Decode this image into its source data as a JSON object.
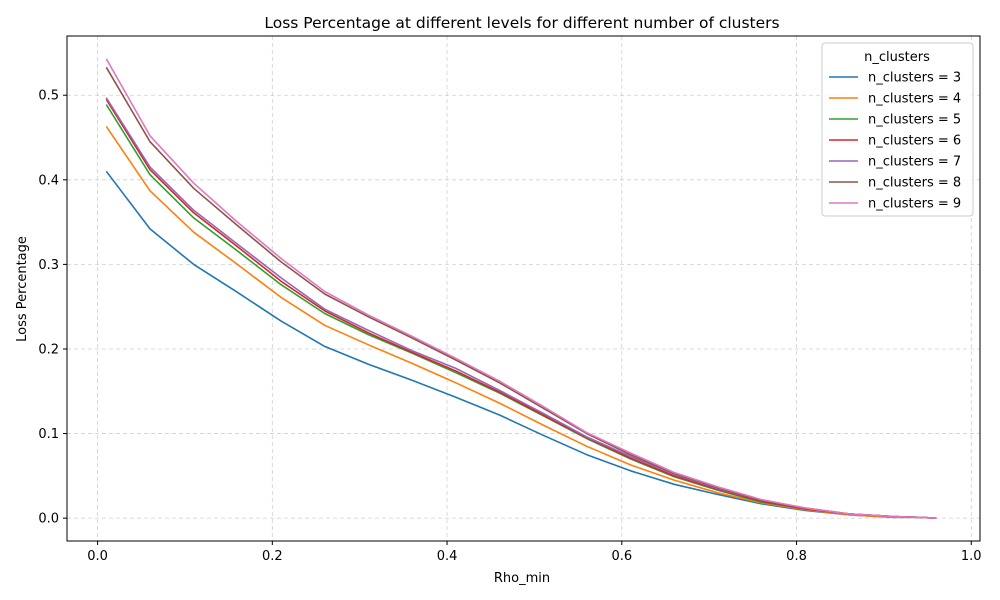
{
  "chart_data": {
    "type": "line",
    "title": "Loss Percentage at different levels for different number of clusters",
    "xlabel": "Rho_min",
    "ylabel": "Loss Percentage",
    "xlim": [
      -0.035,
      1.01
    ],
    "ylim": [
      -0.027,
      0.57
    ],
    "xticks": [
      0.0,
      0.2,
      0.4,
      0.6,
      0.8,
      1.0
    ],
    "xtick_labels": [
      "0.0",
      "0.2",
      "0.4",
      "0.6",
      "0.8",
      "1.0"
    ],
    "yticks": [
      0.0,
      0.1,
      0.2,
      0.3,
      0.4,
      0.5
    ],
    "ytick_labels": [
      "0.0",
      "0.1",
      "0.2",
      "0.3",
      "0.4",
      "0.5"
    ],
    "grid": true,
    "legend_title": "n_clusters",
    "legend_position": "top-right",
    "x": [
      0.01,
      0.06,
      0.11,
      0.16,
      0.21,
      0.26,
      0.31,
      0.36,
      0.41,
      0.46,
      0.51,
      0.56,
      0.61,
      0.66,
      0.71,
      0.76,
      0.81,
      0.86,
      0.91,
      0.94,
      0.96
    ],
    "series": [
      {
        "name": "n_clusters = 3",
        "color": "#1f77b4",
        "values": [
          0.41,
          0.342,
          0.3,
          0.267,
          0.233,
          0.203,
          0.182,
          0.163,
          0.143,
          0.122,
          0.098,
          0.075,
          0.056,
          0.04,
          0.028,
          0.017,
          0.009,
          0.004,
          0.001,
          0.001,
          0.0
        ]
      },
      {
        "name": "n_clusters = 4",
        "color": "#ff7f0e",
        "values": [
          0.463,
          0.387,
          0.338,
          0.3,
          0.261,
          0.228,
          0.205,
          0.183,
          0.16,
          0.136,
          0.11,
          0.085,
          0.063,
          0.045,
          0.03,
          0.018,
          0.01,
          0.004,
          0.001,
          0.001,
          0.0
        ]
      },
      {
        "name": "n_clusters = 5",
        "color": "#2ca02c",
        "values": [
          0.489,
          0.406,
          0.355,
          0.316,
          0.276,
          0.242,
          0.217,
          0.195,
          0.172,
          0.148,
          0.121,
          0.094,
          0.07,
          0.049,
          0.033,
          0.019,
          0.011,
          0.005,
          0.002,
          0.001,
          0.0
        ]
      },
      {
        "name": "n_clusters = 6",
        "color": "#d62728",
        "values": [
          0.495,
          0.412,
          0.361,
          0.321,
          0.28,
          0.245,
          0.219,
          0.196,
          0.174,
          0.149,
          0.122,
          0.095,
          0.071,
          0.05,
          0.034,
          0.02,
          0.011,
          0.005,
          0.002,
          0.001,
          0.0
        ]
      },
      {
        "name": "n_clusters = 7",
        "color": "#9467bd",
        "values": [
          0.497,
          0.415,
          0.364,
          0.324,
          0.284,
          0.247,
          0.222,
          0.198,
          0.177,
          0.151,
          0.124,
          0.096,
          0.073,
          0.052,
          0.035,
          0.021,
          0.012,
          0.005,
          0.002,
          0.001,
          0.0
        ]
      },
      {
        "name": "n_clusters = 8",
        "color": "#8c564b",
        "values": [
          0.533,
          0.445,
          0.39,
          0.346,
          0.303,
          0.265,
          0.238,
          0.213,
          0.187,
          0.16,
          0.13,
          0.1,
          0.075,
          0.053,
          0.036,
          0.021,
          0.012,
          0.005,
          0.002,
          0.001,
          0.0
        ]
      },
      {
        "name": "n_clusters = 9",
        "color": "#e377c2",
        "values": [
          0.543,
          0.452,
          0.396,
          0.35,
          0.307,
          0.268,
          0.24,
          0.215,
          0.189,
          0.162,
          0.132,
          0.101,
          0.077,
          0.054,
          0.037,
          0.022,
          0.012,
          0.005,
          0.002,
          0.001,
          0.0
        ]
      }
    ]
  }
}
